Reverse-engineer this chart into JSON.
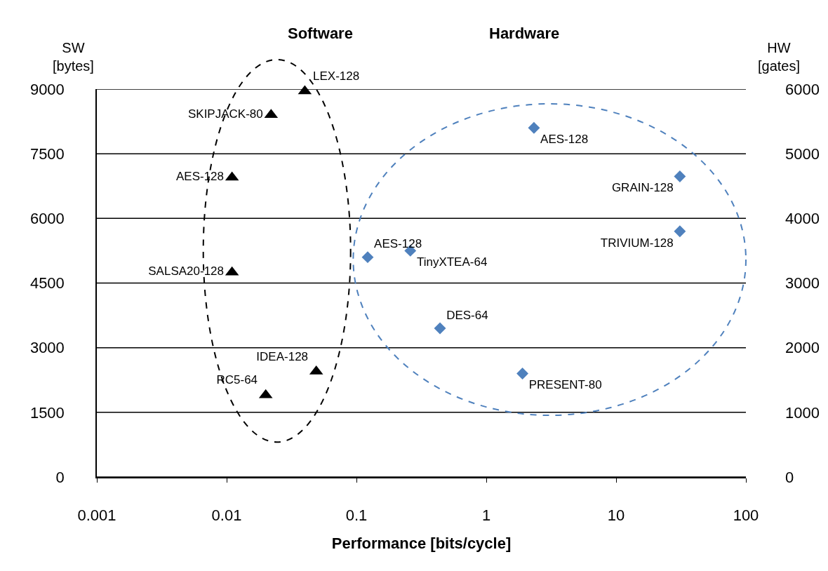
{
  "chart_data": {
    "type": "scatter",
    "xlabel": "Performance [bits/cycle]",
    "ylabel": "SW [bytes]",
    "y2label": "HW [gates]",
    "annotations": [
      "Software",
      "Hardware"
    ],
    "log": "x",
    "grid": "y",
    "legend": false,
    "xlim": [
      0.001,
      100
    ],
    "xticks": [
      0.001,
      0.01,
      0.1,
      1,
      10,
      100
    ],
    "ylim": [
      0,
      9000
    ],
    "yticks": [
      0,
      1500,
      3000,
      4500,
      6000,
      7500,
      9000
    ],
    "y2lim": [
      0,
      6000
    ],
    "y2ticks": [
      0,
      1000,
      2000,
      3000,
      4000,
      5000,
      6000
    ],
    "series": [
      {
        "color": "#000000",
        "marker": "triangle",
        "x": [
          0.04,
          0.022,
          0.011,
          0.011,
          0.049,
          0.02
        ],
        "values": [
          8950,
          8400,
          6950,
          4750,
          2450,
          1900
        ],
        "value_labels": [
          "LEX-128",
          "SKIPJACK-80",
          "AES-128",
          "SALSA20-128",
          "IDEA-128",
          "RC5-64"
        ]
      },
      {
        "color": "#4f81bd",
        "marker": "diamond",
        "axis": "y2",
        "x": [
          2.33,
          31,
          31,
          0.122,
          0.26,
          0.44,
          1.9
        ],
        "values": [
          5400,
          4650,
          3800,
          3400,
          3500,
          2300,
          1600
        ],
        "value_labels": [
          "AES-128",
          "GRAIN-128",
          "TRIVIUM-128",
          "AES-128",
          "TinyXTEA-64",
          "DES-64",
          "PRESENT-80"
        ]
      }
    ]
  }
}
